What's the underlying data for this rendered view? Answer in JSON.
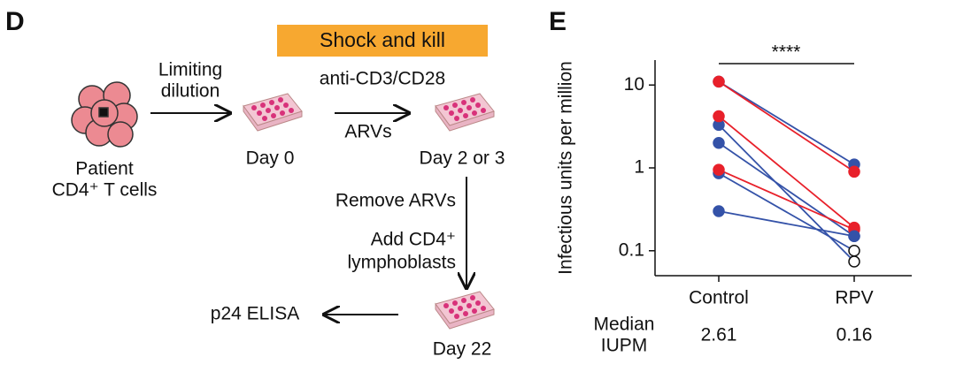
{
  "panel_d": {
    "label": "D",
    "banner": "Shock and kill",
    "stimulus": "anti-CD3/CD28",
    "dilution": [
      "Limiting",
      "dilution"
    ],
    "source": [
      "Patient",
      "CD4⁺ T cells"
    ],
    "arvs": "ARVs",
    "day0": "Day 0",
    "day2": "Day 2 or 3",
    "remove": "Remove ARVs",
    "add": [
      "Add CD4⁺",
      "lymphoblasts"
    ],
    "readout": "p24 ELISA",
    "day22": "Day 22"
  },
  "chart_data": {
    "type": "line",
    "label": "E",
    "ylabel": "Infectious units per million",
    "categories": [
      "Control",
      "RPV"
    ],
    "log_y": true,
    "ylim": [
      0.05,
      20
    ],
    "yticks": [
      0.1,
      1,
      10
    ],
    "series": [
      {
        "color": "#3452a8",
        "values": [
          11,
          1.1
        ],
        "hollow": [
          false,
          false
        ]
      },
      {
        "color": "#e8202a",
        "values": [
          11,
          0.9
        ],
        "hollow": [
          false,
          false
        ]
      },
      {
        "color": "#3452a8",
        "values": [
          3.3,
          0.074
        ],
        "hollow": [
          false,
          true
        ]
      },
      {
        "color": "#e8202a",
        "values": [
          4.2,
          0.19
        ],
        "hollow": [
          false,
          false
        ]
      },
      {
        "color": "#3452a8",
        "values": [
          2.0,
          0.15
        ],
        "hollow": [
          false,
          false
        ]
      },
      {
        "color": "#3452a8",
        "values": [
          0.86,
          0.1
        ],
        "hollow": [
          false,
          true
        ]
      },
      {
        "color": "#e8202a",
        "values": [
          0.95,
          0.18
        ],
        "hollow": [
          false,
          false
        ]
      },
      {
        "color": "#3452a8",
        "values": [
          0.3,
          0.15
        ],
        "hollow": [
          false,
          false
        ]
      }
    ],
    "significance": "****",
    "median_label": [
      "Median",
      "IUPM"
    ],
    "medians": [
      "2.61",
      "0.16"
    ]
  }
}
